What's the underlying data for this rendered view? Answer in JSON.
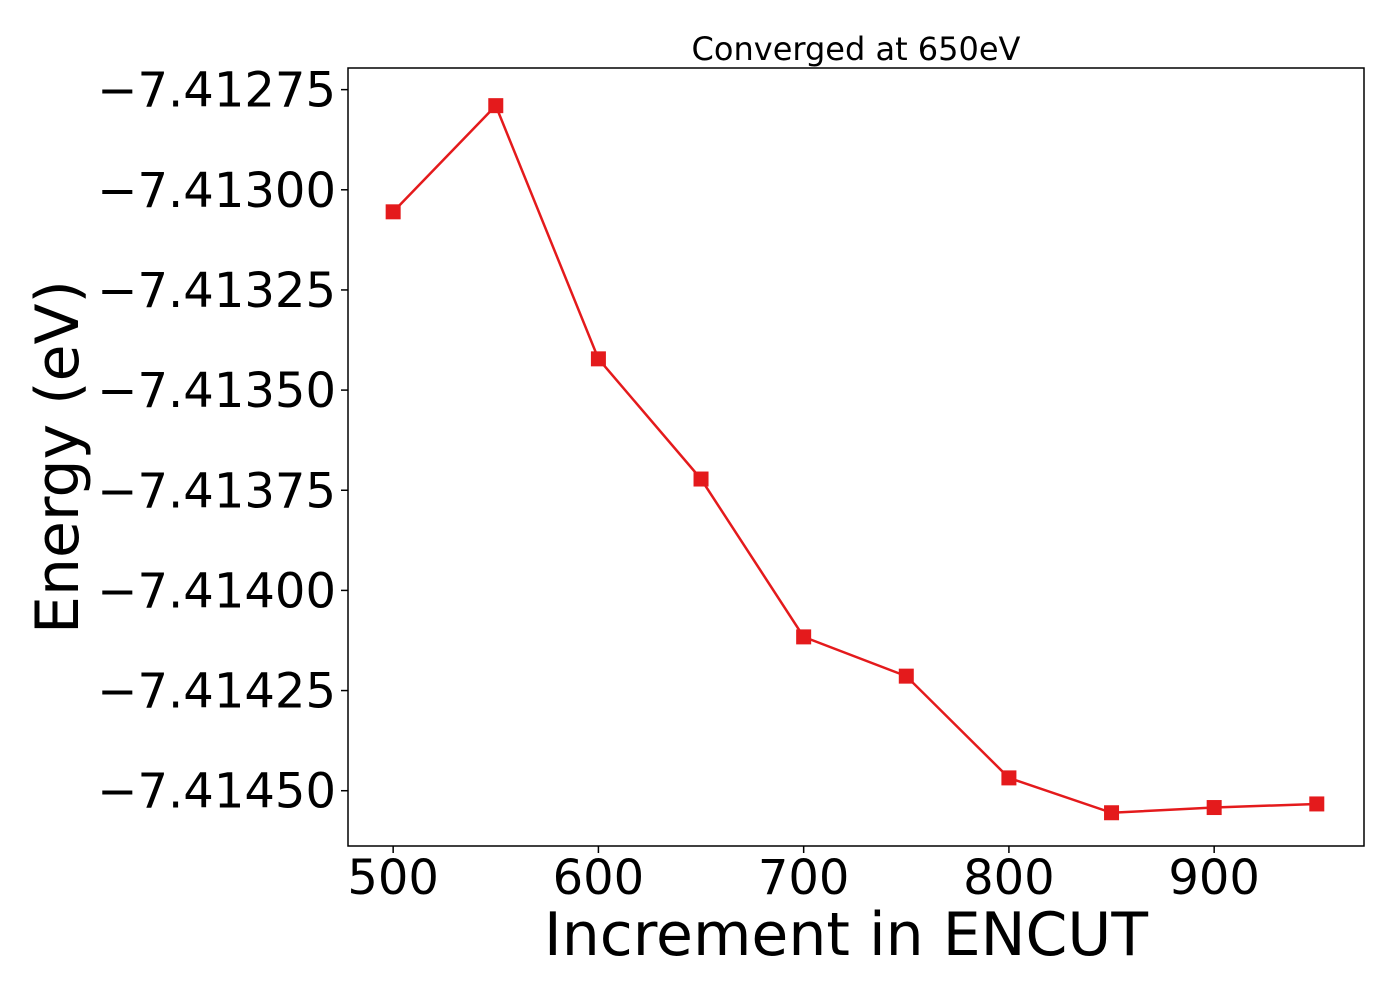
{
  "chart_data": {
    "type": "line",
    "title": "Converged at 650eV",
    "xlabel": "Increment in ENCUT",
    "ylabel": "Energy (eV)",
    "x": [
      500,
      550,
      600,
      650,
      700,
      750,
      800,
      850,
      900,
      950
    ],
    "xlim": [
      478,
      973
    ],
    "ylim": [
      -7.414638,
      -7.412696
    ],
    "xticks": [
      500,
      600,
      700,
      800,
      900
    ],
    "xtick_labels": [
      "500",
      "600",
      "700",
      "800",
      "900"
    ],
    "yticks": [
      -7.41275,
      -7.413,
      -7.41325,
      -7.4135,
      -7.41375,
      -7.414,
      -7.41425,
      -7.4145
    ],
    "ytick_labels": [
      "−7.41275",
      "−7.41300",
      "−7.41325",
      "−7.41350",
      "−7.41375",
      "−7.41400",
      "−7.41425",
      "−7.41450"
    ],
    "grid": false,
    "series": [
      {
        "marker": "square",
        "color": "#e41a1c",
        "values": [
          -7.413055,
          -7.41279,
          -7.413422,
          -7.413722,
          -7.414116,
          -7.414214,
          -7.414468,
          -7.414555,
          -7.414542,
          -7.414533
        ]
      }
    ]
  }
}
